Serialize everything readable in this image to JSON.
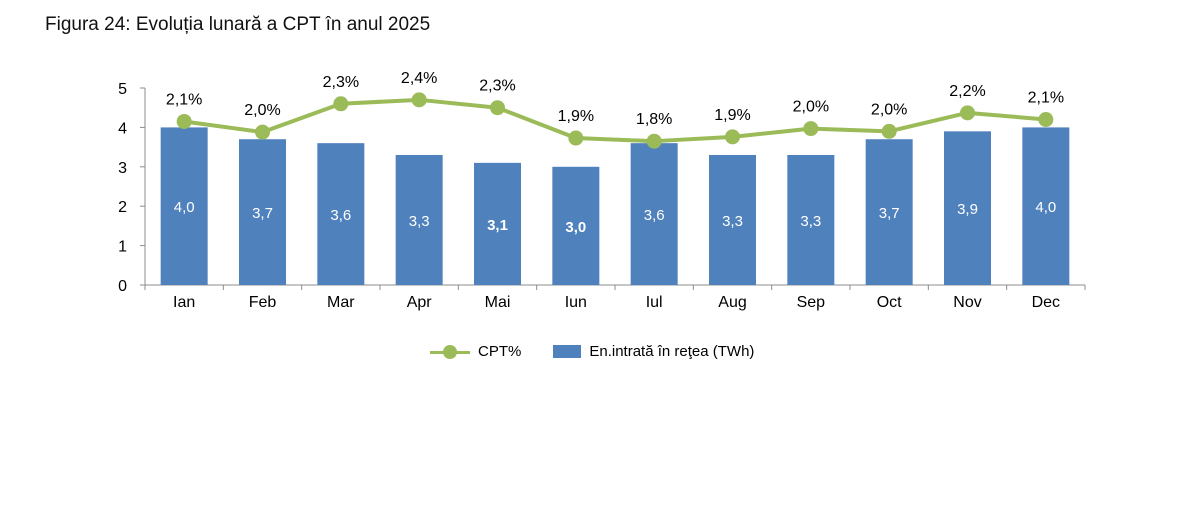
{
  "figure_title": "Figura 24: Evoluția lunară a CPT în anul 2025",
  "colors": {
    "bar": "#4f81bd",
    "line": "#9bbb59",
    "bar_label": "#ffffff"
  },
  "chart_data": {
    "type": "bar+line",
    "title": "Figura 24: Evoluția lunară a CPT în anul 2025",
    "categories": [
      "Ian",
      "Feb",
      "Mar",
      "Apr",
      "Mai",
      "Iun",
      "Iul",
      "Aug",
      "Sep",
      "Oct",
      "Nov",
      "Dec"
    ],
    "series": [
      {
        "name": "En.intrată în reţea (TWh)",
        "type": "bar",
        "values": [
          4.0,
          3.7,
          3.6,
          3.3,
          3.1,
          3.0,
          3.6,
          3.3,
          3.3,
          3.7,
          3.9,
          4.0
        ],
        "labels": [
          "4,0",
          "3,7",
          "3,6",
          "3,3",
          "3,1",
          "3,0",
          "3,6",
          "3,3",
          "3,3",
          "3,7",
          "3,9",
          "4,0"
        ],
        "bold_labels": [
          false,
          false,
          false,
          false,
          true,
          true,
          false,
          false,
          false,
          false,
          false,
          false
        ]
      },
      {
        "name": "CPT%",
        "type": "line",
        "values": [
          2.1,
          2.0,
          2.3,
          2.4,
          2.3,
          1.9,
          1.8,
          1.9,
          2.0,
          2.0,
          2.2,
          2.1
        ],
        "plotted_positions": [
          4.15,
          3.88,
          4.6,
          4.7,
          4.5,
          3.73,
          3.65,
          3.76,
          3.97,
          3.9,
          4.37,
          4.2
        ],
        "labels": [
          "2,1%",
          "2,0%",
          "2,3%",
          "2,4%",
          "2,3%",
          "1,9%",
          "1,8%",
          "1,9%",
          "2,0%",
          "2,0%",
          "2,2%",
          "2,1%"
        ]
      }
    ],
    "y_axis": {
      "min": 0,
      "max": 5,
      "ticks": [
        "0",
        "1",
        "2",
        "3",
        "4",
        "5"
      ]
    },
    "grid": false,
    "legend": {
      "position": "bottom",
      "items": [
        "CPT%",
        "En.intrată în reţea (TWh)"
      ]
    }
  }
}
